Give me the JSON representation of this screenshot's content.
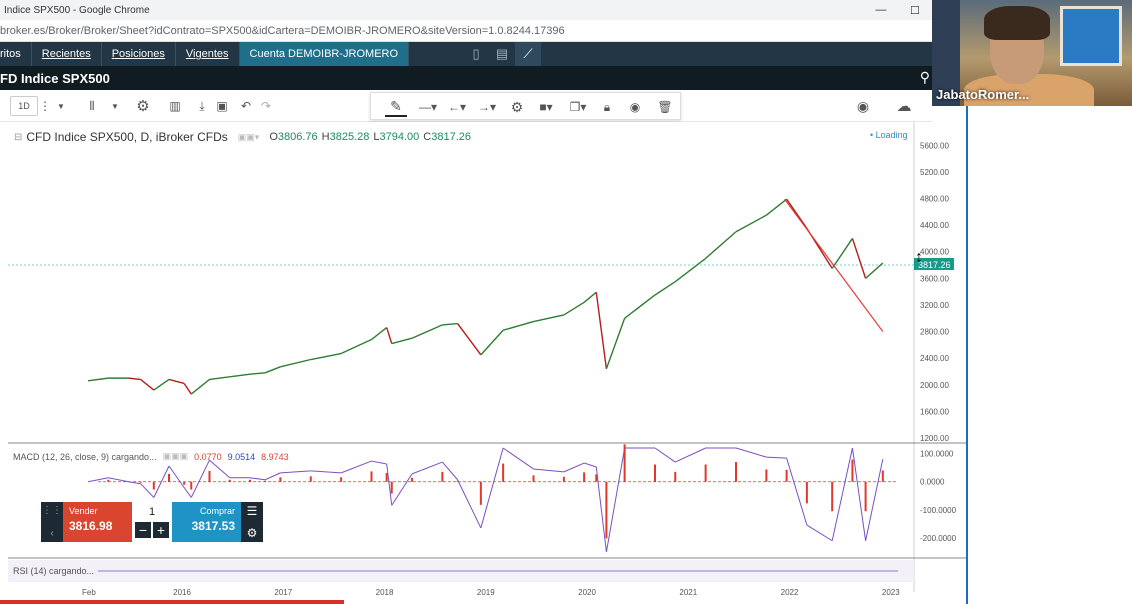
{
  "browser": {
    "title": "Indice SPX500 - Google Chrome",
    "url": "broker.es/Broker/Broker/Sheet?idContrato=SPX500&idCartera=DEMOIBR-JROMERO&siteVersion=1.0.8244.17396",
    "minimize": "—",
    "maximize": "☐"
  },
  "nav": {
    "items": [
      "ritos",
      "Recientes",
      "Posiciones",
      "Vigentes",
      "Cuenta DEMOIBR-JROMERO"
    ]
  },
  "instrument": {
    "name": "FD Indice SPX500"
  },
  "toolbar": {
    "interval": "1D"
  },
  "chart": {
    "symbol_line": "CFD Indice SPX500, D, iBroker CFDs",
    "o_label": "O",
    "o_value": "3806.76",
    "h_label": "H",
    "h_value": "3825.28",
    "l_label": "L",
    "l_value": "3794.00",
    "c_label": "C",
    "c_value": "3817.26",
    "loading": "• Loading",
    "last_price_tag": "3817.26"
  },
  "macd": {
    "label": "MACD (12, 26, close, 9) cargando...",
    "v1": "0.0770",
    "v2": "9.0514",
    "v3": "8.9743"
  },
  "rsi": {
    "label": "RSI (14) cargando..."
  },
  "trade": {
    "sell_label": "Vender",
    "sell_price": "3816.98",
    "buy_label": "Comprar",
    "buy_price": "3817.53",
    "quantity": "1",
    "minus": "−",
    "plus": "+"
  },
  "webcam": {
    "name": "JabatoRomer..."
  },
  "colors": {
    "price_line": "#2e7d32",
    "price_line_dn": "#b71c1c",
    "macd_line": "#7b4fc0",
    "macd_hist": "#e0392b",
    "nav_bg": "#233646",
    "accent": "#1f6f8b"
  },
  "chart_data": {
    "type": "line",
    "title": "CFD Indice SPX500, D, iBroker CFDs",
    "x_ticks": [
      "Feb",
      "2016",
      "2017",
      "2018",
      "2019",
      "2020",
      "2021",
      "2022",
      "2023"
    ],
    "y_ticks": [
      1200,
      1600,
      2000,
      2400,
      2800,
      3200,
      3600,
      4000,
      4400,
      4800,
      5200,
      5600
    ],
    "y_tick_labels": [
      "1200.00",
      "1600.00",
      "2000.00",
      "2400.00",
      "2800.00",
      "3200.00",
      "3600.00",
      "4000.00",
      "4400.00",
      "4800.00",
      "5200.00",
      "5600.00"
    ],
    "ylim": [
      1200,
      5800
    ],
    "xlim": [
      2015.1,
      2023.1
    ],
    "series": [
      {
        "x": [
          2015.1,
          2015.3,
          2015.5,
          2015.62,
          2015.75,
          2015.9,
          2016.05,
          2016.12,
          2016.3,
          2016.5,
          2016.7,
          2016.85,
          2017.0,
          2017.3,
          2017.6,
          2017.9,
          2018.05,
          2018.1,
          2018.3,
          2018.6,
          2018.75,
          2018.98,
          2019.2,
          2019.5,
          2019.8,
          2020.0,
          2020.12,
          2020.22,
          2020.4,
          2020.7,
          2020.9,
          2021.2,
          2021.5,
          2021.8,
          2022.0,
          2022.2,
          2022.45,
          2022.65,
          2022.78,
          2022.95
        ],
        "y": [
          2060,
          2100,
          2100,
          2080,
          1920,
          2080,
          2020,
          1860,
          2080,
          2120,
          2160,
          2180,
          2270,
          2380,
          2470,
          2680,
          2860,
          2620,
          2700,
          2900,
          2920,
          2450,
          2820,
          2950,
          3050,
          3240,
          3390,
          2240,
          3000,
          3350,
          3550,
          3900,
          4300,
          4550,
          4790,
          4350,
          3750,
          4200,
          3600,
          3830
        ]
      }
    ],
    "drawings": [
      {
        "type": "trendline",
        "from": [
          2021.98,
          4790
        ],
        "to": [
          2022.95,
          2800
        ]
      }
    ],
    "macd": {
      "y_ticks": [
        100,
        0,
        -100,
        -200
      ],
      "y_tick_labels": [
        "100.0000",
        "0.0000",
        "-100.0000",
        "-200.0000"
      ],
      "ylim": [
        -250,
        120
      ]
    }
  }
}
